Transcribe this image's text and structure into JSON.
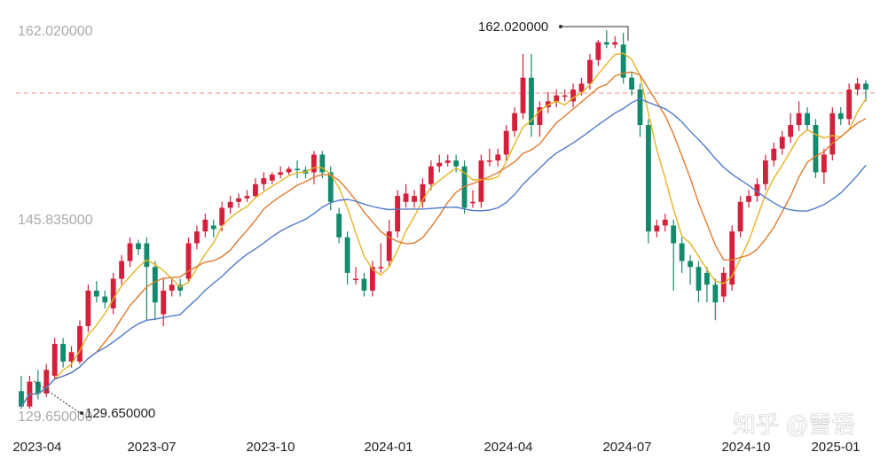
{
  "chart_data": {
    "type": "candlestick",
    "y_axis_labels": [
      "162.020000",
      "145.835000",
      "129.650000"
    ],
    "ylim": [
      129.65,
      162.02
    ],
    "reference_line": 156.7,
    "x_tick_labels": [
      "2023-04",
      "2023-07",
      "2023-10",
      "2024-01",
      "2024-04",
      "2024-07",
      "2024-10",
      "2025-01"
    ],
    "annotations": {
      "high_label": "162.020000",
      "low_label": "129.650000"
    },
    "watermark": "知乎 @雪语",
    "colors": {
      "up": "#d4203a",
      "down": "#148a6c",
      "ma5": "#e6b422",
      "ma10": "#e07a2e",
      "ma20": "#4f7bc9",
      "ref": "#e8907a"
    },
    "candles": [
      [
        131.5,
        130.2,
        132.8,
        130.0
      ],
      [
        130.2,
        132.3,
        132.8,
        130.0
      ],
      [
        132.3,
        131.3,
        133.3,
        130.8
      ],
      [
        131.3,
        133.3,
        133.8,
        131.0
      ],
      [
        132.8,
        135.5,
        136.0,
        132.5
      ],
      [
        135.5,
        134.0,
        136.0,
        133.5
      ],
      [
        134.0,
        134.8,
        135.3,
        133.5
      ],
      [
        134.0,
        137.0,
        137.5,
        133.8
      ],
      [
        137.0,
        140.0,
        140.5,
        136.5
      ],
      [
        140.0,
        139.5,
        140.8,
        139.0
      ],
      [
        139.5,
        139.0,
        140.0,
        138.5
      ],
      [
        138.5,
        141.0,
        141.5,
        138.0
      ],
      [
        141.0,
        142.5,
        143.0,
        140.5
      ],
      [
        142.5,
        144.0,
        144.5,
        142.0
      ],
      [
        144.0,
        143.5,
        144.3,
        143.0
      ],
      [
        144.0,
        142.0,
        144.5,
        137.5
      ],
      [
        142.0,
        139.0,
        142.5,
        137.5
      ],
      [
        138.0,
        140.0,
        141.0,
        137.0
      ],
      [
        140.0,
        140.5,
        141.0,
        139.5
      ],
      [
        140.5,
        140.0,
        141.0,
        139.5
      ],
      [
        141.0,
        144.0,
        144.5,
        140.8
      ],
      [
        144.0,
        145.0,
        145.5,
        143.5
      ],
      [
        145.0,
        146.0,
        146.5,
        144.5
      ],
      [
        145.5,
        145.2,
        146.0,
        144.5
      ],
      [
        145.5,
        147.0,
        147.5,
        145.0
      ],
      [
        147.0,
        147.5,
        148.0,
        146.5
      ],
      [
        147.5,
        147.8,
        148.2,
        147.0
      ],
      [
        147.8,
        148.0,
        148.5,
        147.5
      ],
      [
        148.0,
        149.0,
        149.5,
        147.8
      ],
      [
        149.0,
        149.5,
        150.0,
        148.5
      ],
      [
        149.3,
        149.8,
        150.0,
        149.0
      ],
      [
        149.8,
        150.0,
        150.5,
        149.5
      ],
      [
        150.0,
        150.3,
        150.5,
        149.8
      ],
      [
        150.3,
        150.2,
        151.0,
        149.5
      ],
      [
        150.2,
        149.9,
        150.5,
        149.5
      ],
      [
        150.0,
        151.5,
        151.8,
        149.0
      ],
      [
        151.5,
        150.0,
        151.8,
        149.5
      ],
      [
        150.0,
        147.5,
        150.5,
        146.8
      ],
      [
        146.5,
        144.5,
        147.0,
        144.0
      ],
      [
        144.5,
        141.5,
        145.0,
        140.5
      ],
      [
        141.0,
        141.0,
        142.0,
        140.5
      ],
      [
        141.0,
        140.0,
        141.5,
        139.5
      ],
      [
        140.0,
        142.0,
        142.5,
        139.5
      ],
      [
        142.0,
        142.0,
        144.0,
        141.5
      ],
      [
        142.5,
        145.0,
        146.0,
        142.0
      ],
      [
        145.0,
        148.0,
        148.5,
        144.5
      ],
      [
        147.5,
        148.2,
        149.0,
        147.0
      ],
      [
        147.5,
        148.0,
        148.5,
        147.0
      ],
      [
        147.5,
        149.0,
        149.5,
        147.0
      ],
      [
        149.0,
        150.5,
        151.0,
        148.5
      ],
      [
        150.5,
        150.8,
        151.5,
        150.0
      ],
      [
        150.8,
        151.0,
        151.5,
        150.5
      ],
      [
        151.0,
        150.5,
        151.5,
        150.0
      ],
      [
        150.5,
        147.0,
        151.0,
        146.5
      ],
      [
        147.5,
        147.5,
        148.5,
        147.0
      ],
      [
        147.5,
        151.0,
        151.5,
        147.0
      ],
      [
        151.0,
        151.0,
        152.0,
        150.5
      ],
      [
        151.0,
        151.5,
        152.0,
        150.5
      ],
      [
        151.5,
        153.5,
        154.0,
        151.0
      ],
      [
        153.5,
        155.0,
        155.5,
        153.0
      ],
      [
        155.0,
        158.0,
        160.0,
        154.5
      ],
      [
        158.0,
        154.0,
        160.0,
        153.0
      ],
      [
        154.0,
        155.5,
        156.0,
        153.0
      ],
      [
        155.5,
        156.0,
        156.8,
        155.0
      ],
      [
        156.0,
        156.5,
        157.0,
        155.5
      ],
      [
        156.5,
        156.5,
        157.0,
        156.0
      ],
      [
        156.0,
        157.0,
        157.5,
        155.5
      ],
      [
        156.8,
        157.5,
        158.0,
        156.5
      ],
      [
        157.5,
        159.5,
        160.0,
        157.0
      ],
      [
        159.5,
        161.0,
        161.2,
        159.0
      ],
      [
        161.0,
        160.8,
        162.0,
        160.5
      ],
      [
        160.8,
        161.0,
        161.5,
        160.5
      ],
      [
        160.8,
        158.0,
        161.8,
        157.5
      ],
      [
        158.0,
        157.0,
        158.5,
        156.5
      ],
      [
        157.0,
        154.0,
        157.5,
        153.0
      ],
      [
        154.0,
        145.0,
        154.5,
        144.0
      ],
      [
        145.0,
        145.5,
        146.0,
        144.5
      ],
      [
        145.5,
        146.0,
        146.5,
        145.0
      ],
      [
        145.5,
        144.0,
        146.0,
        140.0
      ],
      [
        144.0,
        142.5,
        144.5,
        141.5
      ],
      [
        142.5,
        142.0,
        143.0,
        140.5
      ],
      [
        142.0,
        140.0,
        142.5,
        139.0
      ],
      [
        141.5,
        140.5,
        142.0,
        139.0
      ],
      [
        140.5,
        139.0,
        141.0,
        137.5
      ],
      [
        139.5,
        141.5,
        142.0,
        139.0
      ],
      [
        140.5,
        145.0,
        145.5,
        140.0
      ],
      [
        145.0,
        147.5,
        148.0,
        144.5
      ],
      [
        147.5,
        148.0,
        148.5,
        147.0
      ],
      [
        148.0,
        149.0,
        149.5,
        147.5
      ],
      [
        149.0,
        151.0,
        151.5,
        148.5
      ],
      [
        151.0,
        152.0,
        152.5,
        150.5
      ],
      [
        152.0,
        153.0,
        153.5,
        151.5
      ],
      [
        153.0,
        154.0,
        155.0,
        152.5
      ],
      [
        154.0,
        155.0,
        156.0,
        153.5
      ],
      [
        155.0,
        154.0,
        155.5,
        153.5
      ],
      [
        154.0,
        150.0,
        154.5,
        149.5
      ],
      [
        150.0,
        151.5,
        152.0,
        149.0
      ],
      [
        151.5,
        155.0,
        155.5,
        151.0
      ],
      [
        155.0,
        154.5,
        155.5,
        154.0
      ],
      [
        154.5,
        157.0,
        157.5,
        154.0
      ],
      [
        157.0,
        157.5,
        158.0,
        156.5
      ],
      [
        157.5,
        157.0,
        157.8,
        156.0
      ]
    ]
  }
}
